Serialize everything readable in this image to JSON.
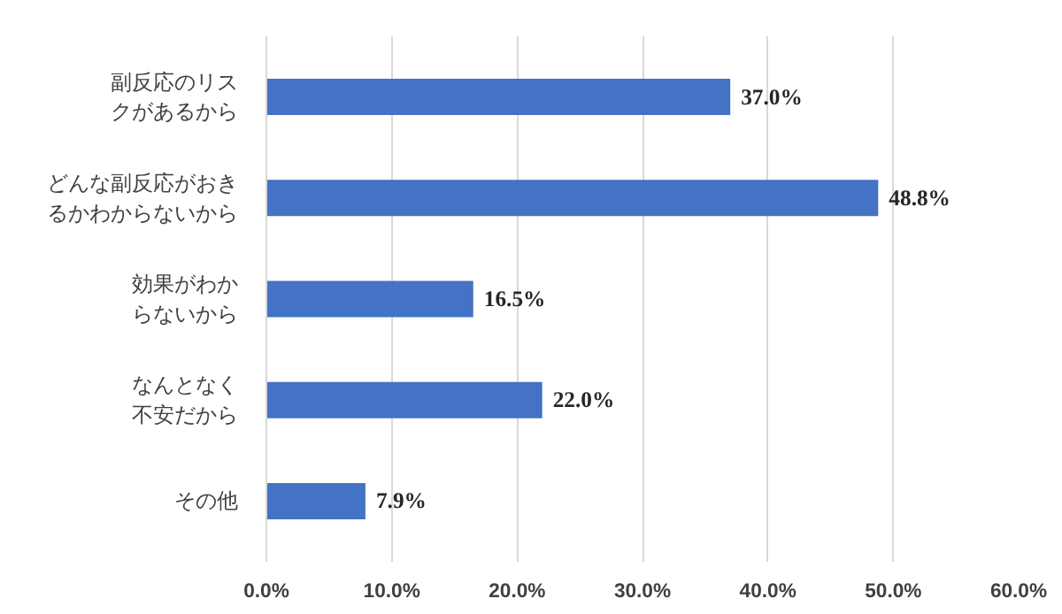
{
  "chart_data": {
    "type": "bar",
    "orientation": "horizontal",
    "categories": [
      "副反応のリスクがあるから",
      "どんな副反応がおきるかわからないから",
      "効果がわからないから",
      "なんとなく不安だから",
      "その他"
    ],
    "values": [
      37.0,
      48.8,
      16.5,
      22.0,
      7.9
    ],
    "value_labels": [
      "37.0%",
      "48.8%",
      "16.5%",
      "22.0%",
      "7.9%"
    ],
    "color": "#4472c4",
    "xlim": [
      0,
      60
    ],
    "xticks": [
      {
        "value": 0,
        "label": "0.0%"
      },
      {
        "value": 10,
        "label": "10.0%"
      },
      {
        "value": 20,
        "label": "20.0%"
      },
      {
        "value": 30,
        "label": "30.0%"
      },
      {
        "value": 40,
        "label": "40.0%"
      },
      {
        "value": 50,
        "label": "50.0%"
      },
      {
        "value": 60,
        "label": "60.0%"
      }
    ],
    "grid": "x"
  }
}
